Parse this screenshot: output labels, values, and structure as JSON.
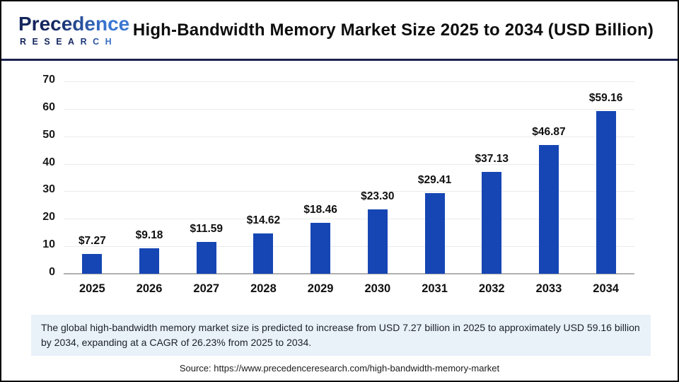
{
  "header": {
    "logo": {
      "line1": "Precedence",
      "line2": "RESEARCH"
    },
    "title": "High-Bandwidth Memory Market Size 2025 to 2034 (USD Billion)"
  },
  "chart_data": {
    "type": "bar",
    "title": "High-Bandwidth Memory Market Size 2025 to 2034 (USD Billion)",
    "categories": [
      "2025",
      "2026",
      "2027",
      "2028",
      "2029",
      "2030",
      "2031",
      "2032",
      "2033",
      "2034"
    ],
    "values": [
      7.27,
      9.18,
      11.59,
      14.62,
      18.46,
      23.3,
      29.41,
      37.13,
      46.87,
      59.16
    ],
    "value_labels": [
      "$7.27",
      "$9.18",
      "$11.59",
      "$14.62",
      "$18.46",
      "$23.30",
      "$29.41",
      "$37.13",
      "$46.87",
      "$59.16"
    ],
    "xlabel": "",
    "ylabel": "",
    "ylim": [
      0,
      70
    ],
    "yticks": [
      0,
      10,
      20,
      30,
      40,
      50,
      60,
      70
    ],
    "grid": true,
    "legend": false,
    "bar_color": "#1646b4"
  },
  "note": {
    "text": "The global high-bandwidth memory market size is predicted to increase from USD 7.27 billion in 2025 to approximately USD 59.16 billion by 2034, expanding at a CAGR of 26.23% from 2025 to 2034."
  },
  "source": {
    "text": "Source: https://www.precedenceresearch.com/high-bandwidth-memory-market"
  },
  "colors": {
    "bar": "#1646b4",
    "header_rule": "#1b2350",
    "note_background": "#e9f1f9",
    "logo_navy": "#15265e",
    "logo_blue": "#3a77d2",
    "gridline": "#ebebeb",
    "axis_baseline": "#b0b0b0"
  }
}
